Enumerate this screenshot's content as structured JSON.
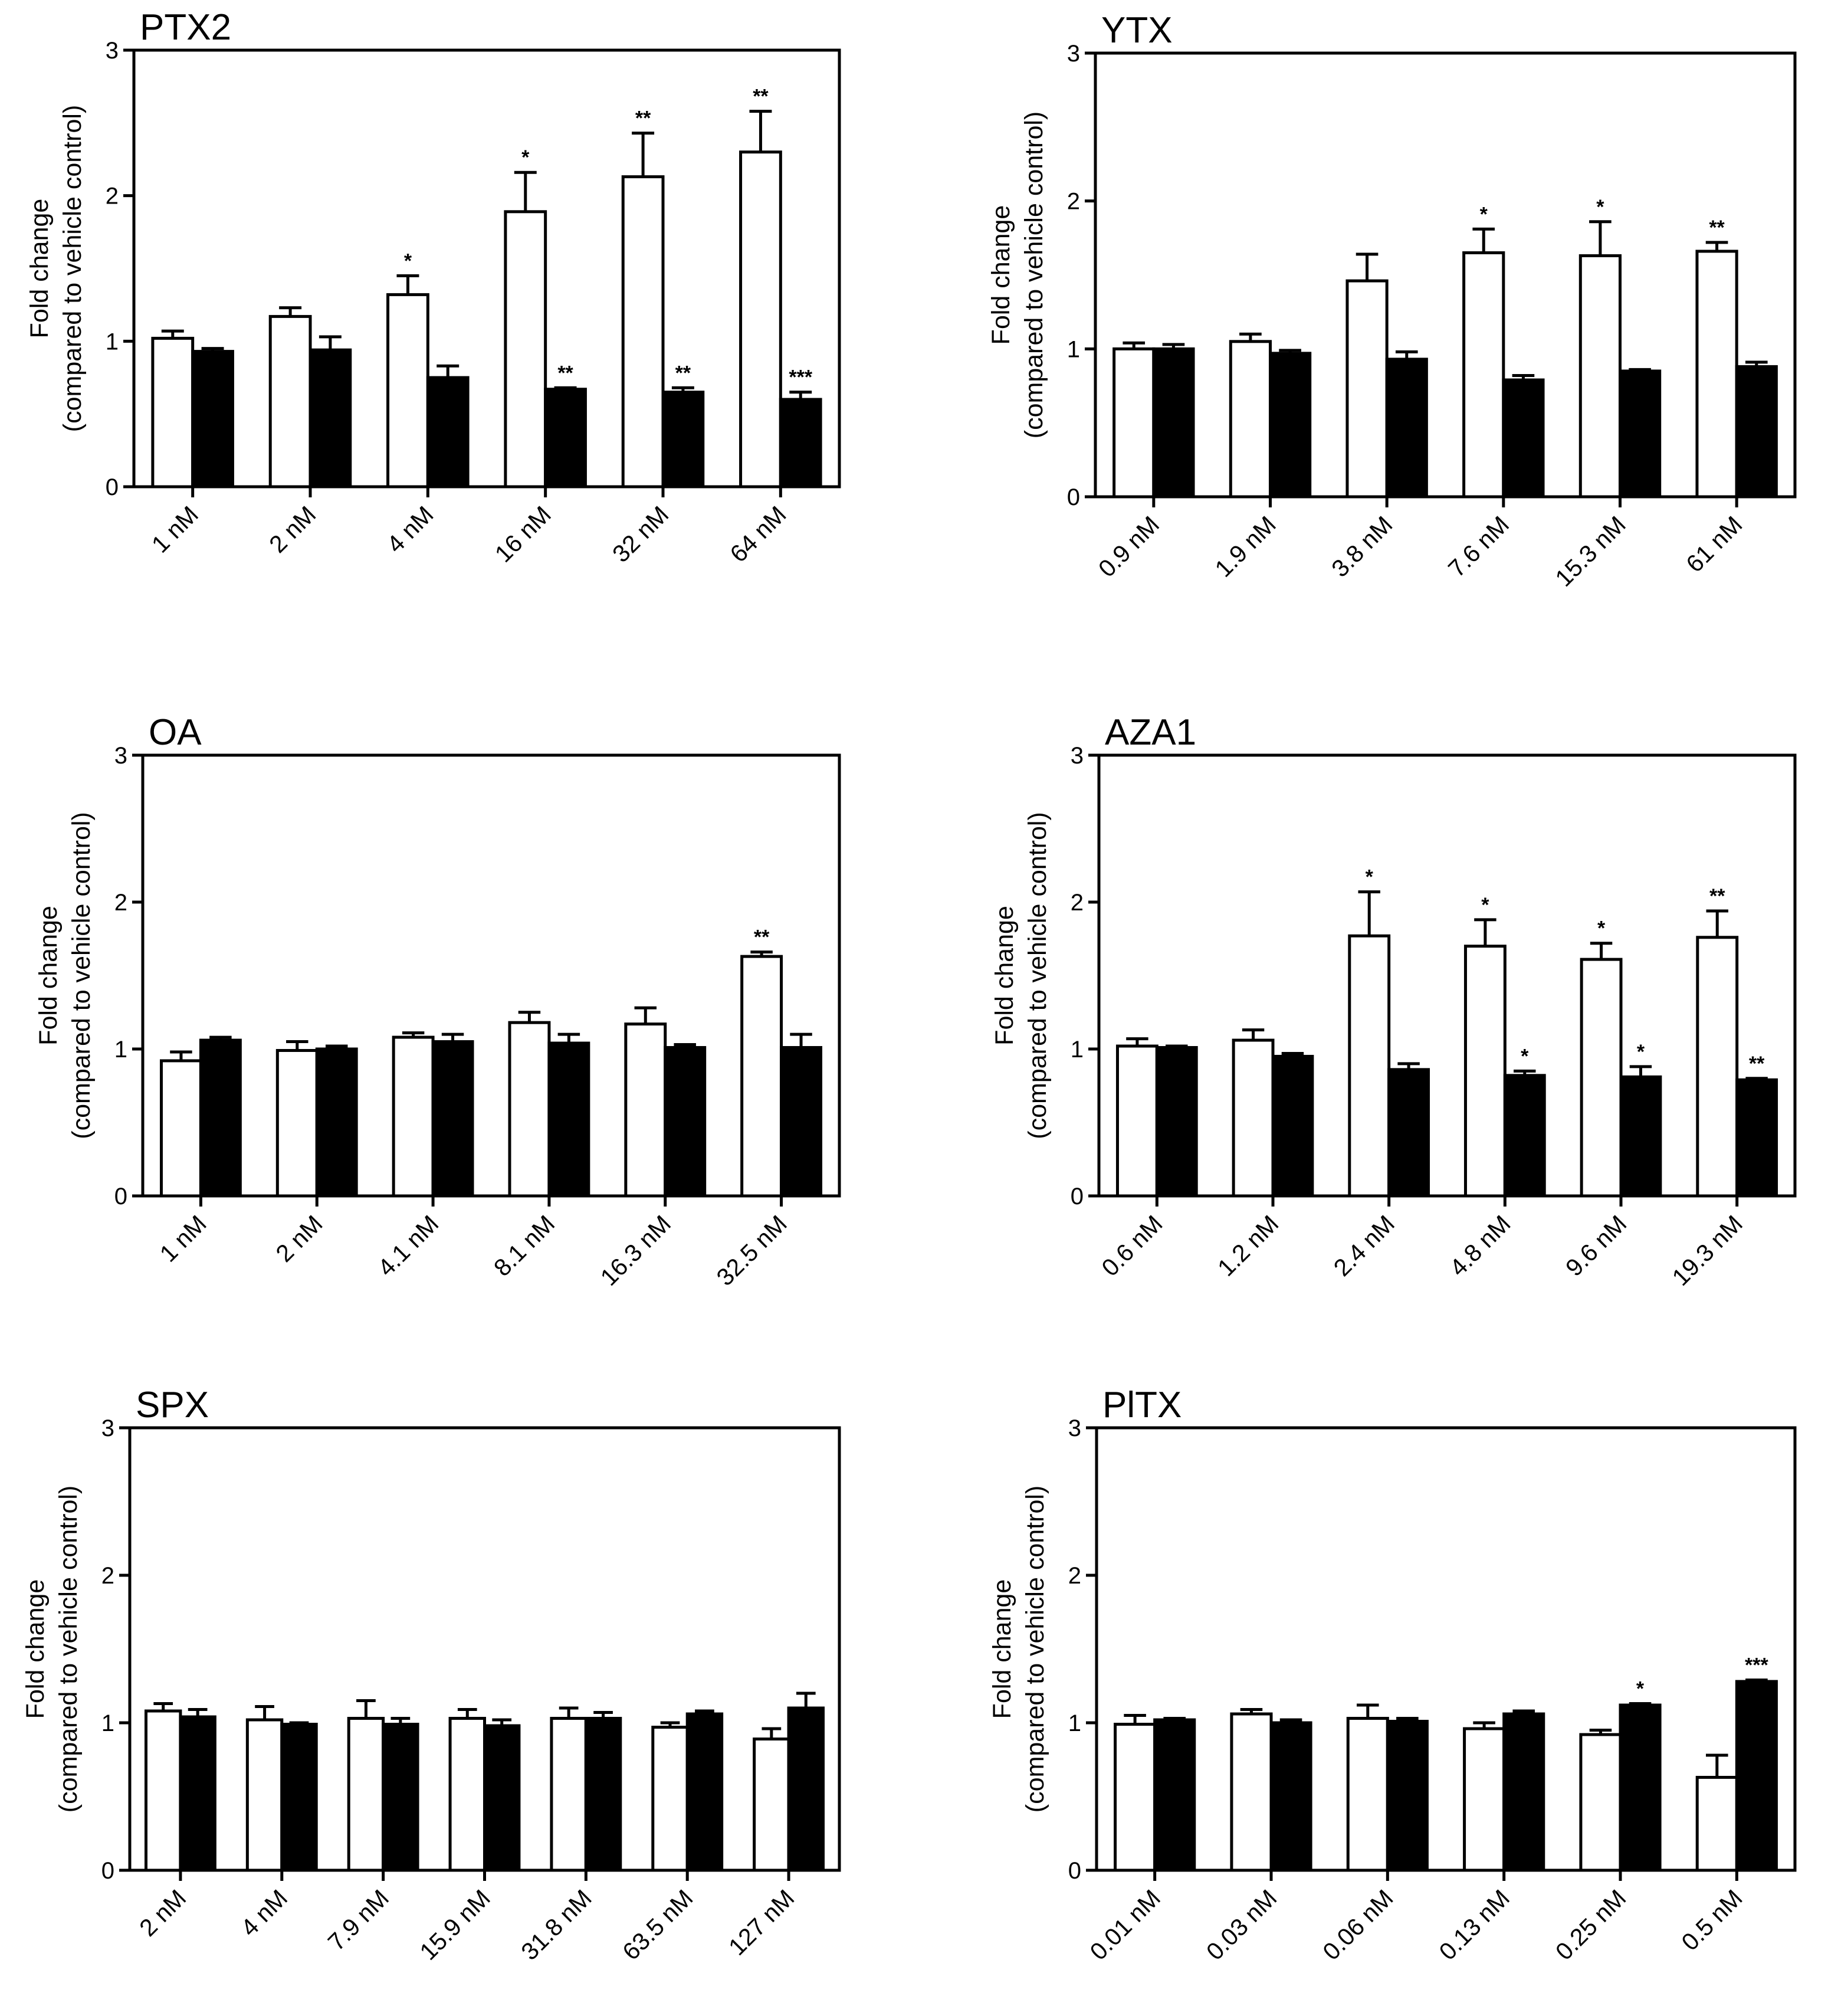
{
  "figure": {
    "ylabel_line1": "Fold change",
    "ylabel_line2": "(compared to vehicle control)",
    "colors": {
      "open_bar": "#ffffff",
      "filled_bar": "#000000",
      "axis": "#000000"
    }
  },
  "chart_data": [
    {
      "id": "ptx2",
      "type": "bar",
      "title": "PTX2",
      "ylim": [
        0,
        3
      ],
      "yticks": [
        "0",
        "1",
        "2",
        "3"
      ],
      "categories": [
        "1 nM",
        "2 nM",
        "4 nM",
        "16 nM",
        "32 nM",
        "64 nM"
      ],
      "series": [
        {
          "name": "open",
          "values": [
            1.02,
            1.17,
            1.32,
            1.89,
            2.13,
            2.3
          ],
          "errors": [
            0.05,
            0.06,
            0.13,
            0.27,
            0.3,
            0.28
          ],
          "sig": [
            "",
            "",
            "*",
            "*",
            "**",
            "**"
          ]
        },
        {
          "name": "filled",
          "values": [
            0.93,
            0.94,
            0.75,
            0.67,
            0.65,
            0.6
          ],
          "errors": [
            0.02,
            0.09,
            0.08,
            0.01,
            0.03,
            0.05
          ],
          "sig": [
            "",
            "",
            "",
            "**",
            "**",
            "***"
          ]
        }
      ]
    },
    {
      "id": "ytx",
      "type": "bar",
      "title": "YTX",
      "ylim": [
        0,
        3
      ],
      "yticks": [
        "0",
        "1",
        "2",
        "3"
      ],
      "categories": [
        "0.9 nM",
        "1.9 nM",
        "3.8 nM",
        "7.6 nM",
        "15.3 nM",
        "61 nM"
      ],
      "series": [
        {
          "name": "open",
          "values": [
            1.0,
            1.05,
            1.46,
            1.65,
            1.63,
            1.66
          ],
          "errors": [
            0.04,
            0.05,
            0.18,
            0.16,
            0.23,
            0.06
          ],
          "sig": [
            "",
            "",
            "",
            "*",
            "*",
            "**"
          ]
        },
        {
          "name": "filled",
          "values": [
            1.0,
            0.97,
            0.93,
            0.79,
            0.85,
            0.88
          ],
          "errors": [
            0.03,
            0.02,
            0.05,
            0.03,
            0.01,
            0.03
          ],
          "sig": [
            "",
            "",
            "",
            "",
            "",
            ""
          ]
        }
      ]
    },
    {
      "id": "oa",
      "type": "bar",
      "title": "OA",
      "ylim": [
        0,
        3
      ],
      "yticks": [
        "0",
        "1",
        "2",
        "3"
      ],
      "categories": [
        "1 nM",
        "2 nM",
        "4.1 nM",
        "8.1 nM",
        "16.3 nM",
        "32.5 nM"
      ],
      "series": [
        {
          "name": "open",
          "values": [
            0.92,
            0.99,
            1.08,
            1.18,
            1.17,
            1.63
          ],
          "errors": [
            0.06,
            0.06,
            0.03,
            0.07,
            0.11,
            0.03
          ],
          "sig": [
            "",
            "",
            "",
            "",
            "",
            "**"
          ]
        },
        {
          "name": "filled",
          "values": [
            1.06,
            1.0,
            1.05,
            1.04,
            1.01,
            1.01
          ],
          "errors": [
            0.02,
            0.02,
            0.05,
            0.06,
            0.02,
            0.09
          ],
          "sig": [
            "",
            "",
            "",
            "",
            "",
            ""
          ]
        }
      ]
    },
    {
      "id": "aza1",
      "type": "bar",
      "title": "AZA1",
      "ylim": [
        0,
        3
      ],
      "yticks": [
        "0",
        "1",
        "2",
        "3"
      ],
      "categories": [
        "0.6 nM",
        "1.2 nM",
        "2.4 nM",
        "4.8 nM",
        "9.6 nM",
        "19.3 nM"
      ],
      "series": [
        {
          "name": "open",
          "values": [
            1.02,
            1.06,
            1.77,
            1.7,
            1.61,
            1.76
          ],
          "errors": [
            0.05,
            0.07,
            0.3,
            0.18,
            0.11,
            0.18
          ],
          "sig": [
            "",
            "",
            "*",
            "*",
            "*",
            "**"
          ]
        },
        {
          "name": "filled",
          "values": [
            1.01,
            0.95,
            0.86,
            0.82,
            0.81,
            0.79
          ],
          "errors": [
            0.01,
            0.02,
            0.04,
            0.03,
            0.07,
            0.01
          ],
          "sig": [
            "",
            "",
            "",
            "*",
            "*",
            "**"
          ]
        }
      ]
    },
    {
      "id": "spx",
      "type": "bar",
      "title": "SPX",
      "ylim": [
        0,
        3
      ],
      "yticks": [
        "0",
        "1",
        "2",
        "3"
      ],
      "categories": [
        "2 nM",
        "4 nM",
        "7.9 nM",
        "15.9 nM",
        "31.8 nM",
        "63.5 nM",
        "127 nM"
      ],
      "series": [
        {
          "name": "open",
          "values": [
            1.08,
            1.02,
            1.03,
            1.03,
            1.03,
            0.97,
            0.89
          ],
          "errors": [
            0.05,
            0.09,
            0.12,
            0.06,
            0.07,
            0.03,
            0.07
          ],
          "sig": [
            "",
            "",
            "",
            "",
            "",
            "",
            ""
          ]
        },
        {
          "name": "filled",
          "values": [
            1.04,
            0.99,
            0.99,
            0.98,
            1.03,
            1.06,
            1.1
          ],
          "errors": [
            0.05,
            0.01,
            0.04,
            0.04,
            0.04,
            0.02,
            0.1
          ],
          "sig": [
            "",
            "",
            "",
            "",
            "",
            "",
            ""
          ]
        }
      ]
    },
    {
      "id": "pitx",
      "type": "bar",
      "title": "PlTX",
      "ylim": [
        0,
        3
      ],
      "yticks": [
        "0",
        "1",
        "2",
        "3"
      ],
      "categories": [
        "0.01 nM",
        "0.03 nM",
        "0.06 nM",
        "0.13 nM",
        "0.25 nM",
        "0.5 nM"
      ],
      "series": [
        {
          "name": "open",
          "values": [
            0.99,
            1.06,
            1.03,
            0.96,
            0.92,
            0.63
          ],
          "errors": [
            0.06,
            0.03,
            0.09,
            0.04,
            0.03,
            0.15
          ],
          "sig": [
            "",
            "",
            "",
            "",
            "",
            ""
          ]
        },
        {
          "name": "filled",
          "values": [
            1.02,
            1.0,
            1.01,
            1.06,
            1.12,
            1.28
          ],
          "errors": [
            0.01,
            0.02,
            0.02,
            0.02,
            0.01,
            0.01
          ],
          "sig": [
            "",
            "",
            "",
            "",
            "*",
            "***"
          ]
        }
      ]
    }
  ]
}
